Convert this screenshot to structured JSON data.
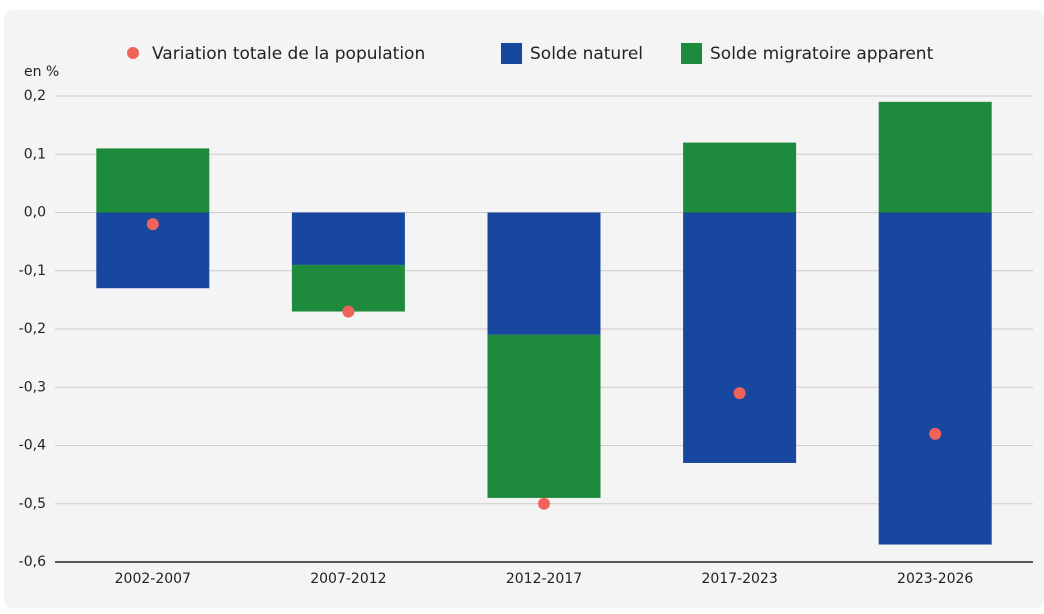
{
  "chart_data": {
    "type": "bar",
    "stacked": true,
    "y_label": "en %",
    "categories": [
      "2002-2007",
      "2007-2012",
      "2012-2017",
      "2017-2023",
      "2023-2026"
    ],
    "series": [
      {
        "name": "Solde naturel",
        "color": "#17479e",
        "values": [
          -0.13,
          -0.09,
          -0.21,
          -0.43,
          -0.57
        ]
      },
      {
        "name": "Solde migratoire apparent",
        "color": "#1e8a3c",
        "values": [
          0.11,
          -0.08,
          -0.28,
          0.12,
          0.19
        ]
      }
    ],
    "total": {
      "name": "Variation totale de la population",
      "color": "#f0625a",
      "values": [
        -0.02,
        -0.17,
        -0.5,
        -0.31,
        -0.38
      ]
    },
    "ylim": [
      -0.6,
      0.2
    ],
    "yticks": [
      {
        "value": -0.6,
        "label": "-0,6"
      },
      {
        "value": -0.5,
        "label": "-0,5"
      },
      {
        "value": -0.4,
        "label": "-0,4"
      },
      {
        "value": -0.3,
        "label": "-0,3"
      },
      {
        "value": -0.2,
        "label": "-0,2"
      },
      {
        "value": -0.1,
        "label": "-0,1"
      },
      {
        "value": 0,
        "label": "0,0"
      },
      {
        "value": 0.1,
        "label": "0,1"
      },
      {
        "value": 0.2,
        "label": "0,2"
      }
    ],
    "grid": true
  }
}
